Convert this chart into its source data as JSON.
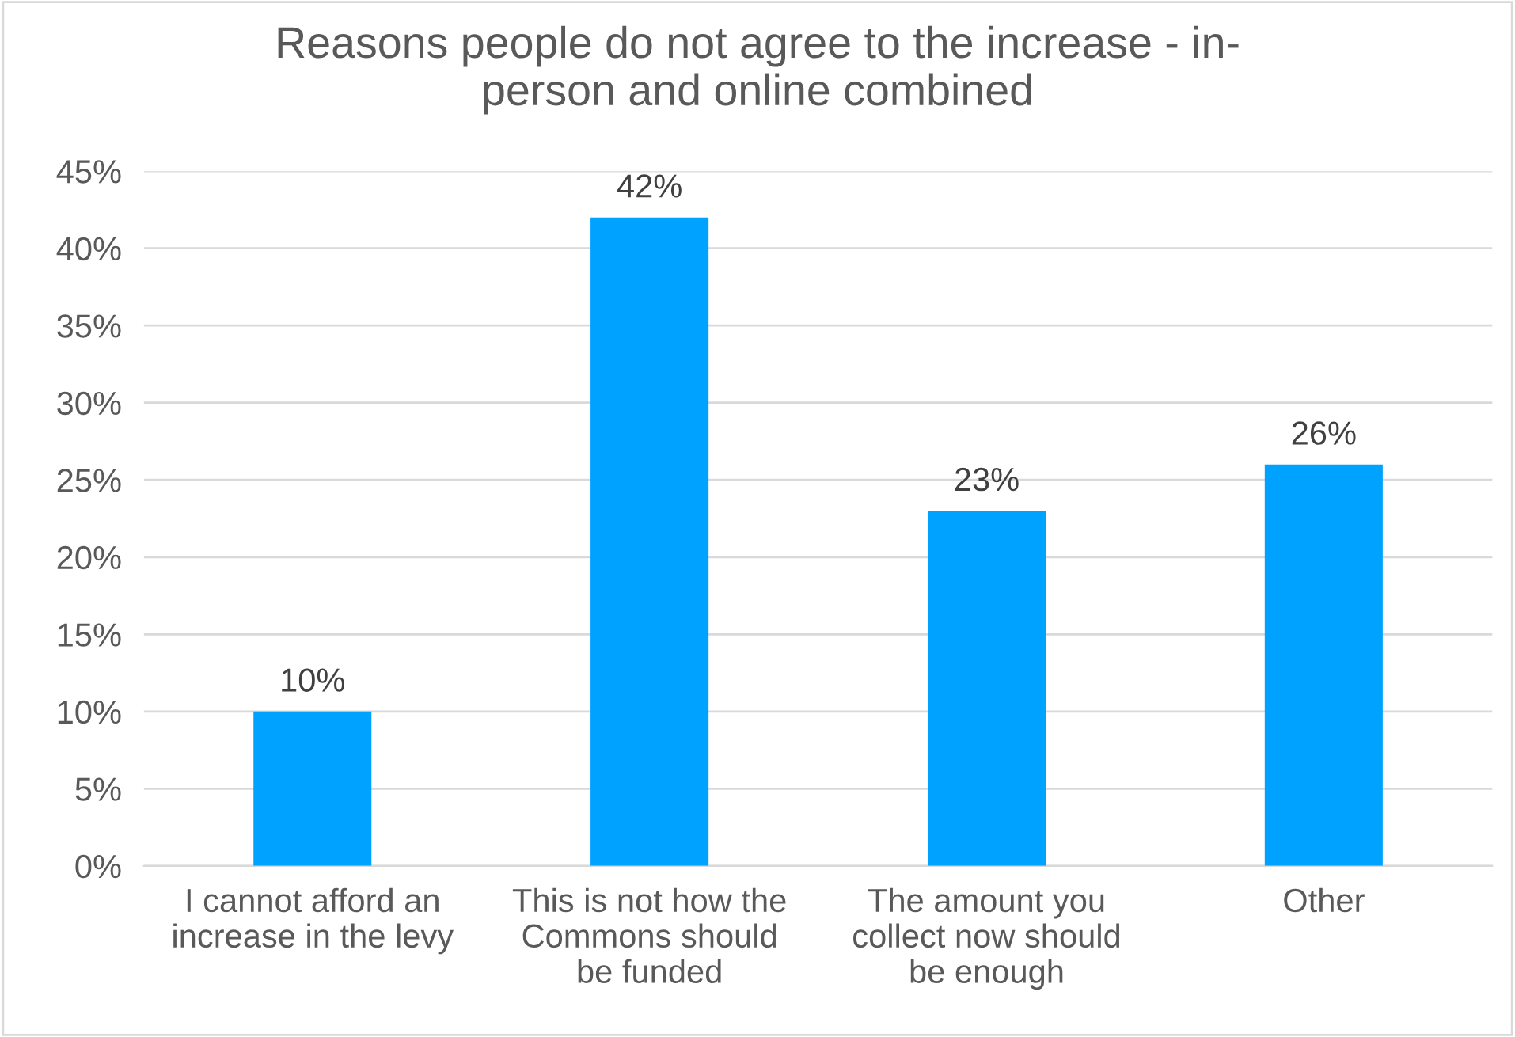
{
  "chart_data": {
    "type": "bar",
    "title": "Reasons people do not agree to the increase - in-\nperson and online combined",
    "categories": [
      "I cannot afford an\nincrease in the levy",
      "This is not how the\nCommons should\nbe funded",
      "The amount you\ncollect now should\nbe enough",
      "Other"
    ],
    "values": [
      10,
      42,
      23,
      26
    ],
    "color": "#00a2ff",
    "data_labels": true,
    "value_labels": [
      "10%",
      "42%",
      "23%",
      "26%"
    ],
    "ylim": [
      0,
      45
    ],
    "yticks": [
      {
        "value": 0,
        "label": "0%"
      },
      {
        "value": 5,
        "label": "5%"
      },
      {
        "value": 10,
        "label": "10%"
      },
      {
        "value": 15,
        "label": "15%"
      },
      {
        "value": 20,
        "label": "20%"
      },
      {
        "value": 25,
        "label": "25%"
      },
      {
        "value": 30,
        "label": "30%"
      },
      {
        "value": 35,
        "label": "35%"
      },
      {
        "value": 40,
        "label": "40%"
      },
      {
        "value": 45,
        "label": "45%"
      }
    ],
    "grid": "y",
    "legend": false
  }
}
